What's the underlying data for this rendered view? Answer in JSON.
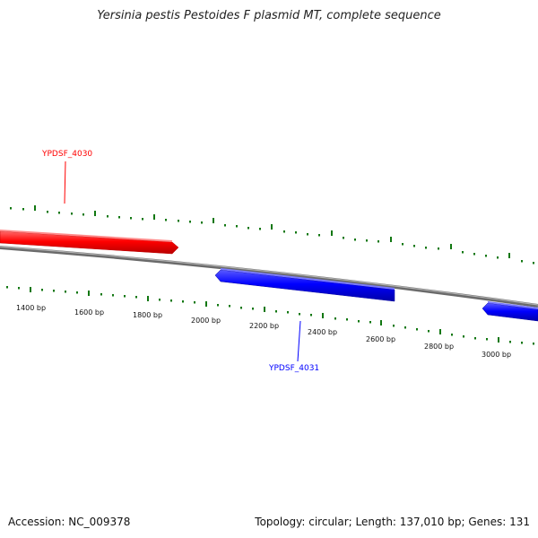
{
  "title": "Yersinia pestis Pestoides F plasmid MT, complete sequence",
  "footer": {
    "accession": "Accession: NC_009378",
    "summary": "Topology: circular; Length: 137,010 bp; Genes: 131"
  },
  "colors": {
    "backbone": "#808080",
    "forward_gene": "#ff0000",
    "reverse_gene": "#0000ff",
    "tick": "#117711"
  },
  "scale_labels": [
    "1400 bp",
    "1600 bp",
    "1800 bp",
    "2000 bp",
    "2200 bp",
    "2400 bp",
    "2600 bp",
    "2800 bp",
    "3000 bp"
  ],
  "genes": [
    {
      "label": "YPDSF_4030",
      "strand": "forward",
      "color": "#ff0000"
    },
    {
      "label": "YPDSF_4031",
      "strand": "reverse",
      "color": "#0000ff"
    },
    {
      "label": "",
      "strand": "reverse",
      "color": "#0000ff"
    }
  ]
}
